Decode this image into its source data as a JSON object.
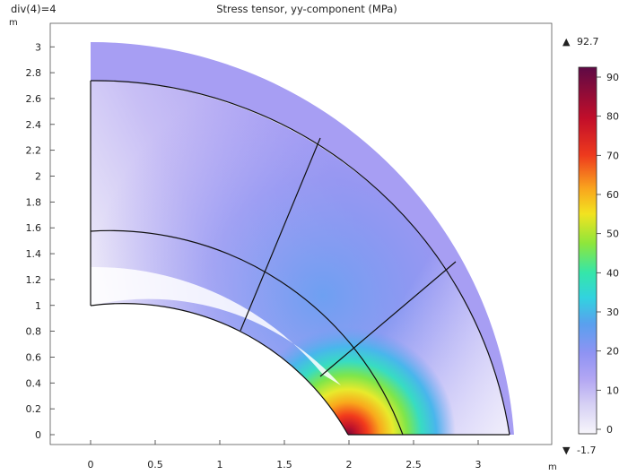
{
  "header": {
    "param_label": "div(4)=4",
    "title": "Stress tensor, yy-component (MPa)"
  },
  "axes": {
    "y_unit": "m",
    "x_unit": "m",
    "x_ticks": [
      "0",
      "0.5",
      "1",
      "1.5",
      "2",
      "2.5",
      "3"
    ],
    "y_ticks": [
      "0",
      "0.2",
      "0.4",
      "0.6",
      "0.8",
      "1",
      "1.2",
      "1.4",
      "1.6",
      "1.8",
      "2",
      "2.2",
      "2.4",
      "2.6",
      "2.8",
      "3"
    ]
  },
  "colorbar": {
    "max_label": "92.7",
    "min_label": "-1.7",
    "ticks": [
      "0",
      "10",
      "20",
      "30",
      "40",
      "50",
      "60",
      "70",
      "80",
      "90"
    ],
    "max_marker": "▲",
    "min_marker": "▼"
  },
  "chart_data": {
    "type": "heatmap",
    "title": "Stress tensor, yy-component (MPa)",
    "xlabel": "",
    "ylabel": "",
    "x_unit": "m",
    "y_unit": "m",
    "xlim": [
      -0.45,
      3.6
    ],
    "ylim": [
      -0.1,
      3.2
    ],
    "value_range": [
      -1.7,
      92.7
    ],
    "geometry": {
      "hole_center": [
        0,
        0
      ],
      "hole_radius": 1.0,
      "quarter_ring_radii": [
        1.0,
        1.58,
        2.42,
        2.75,
        3.25
      ],
      "data_outer_radius": 3.25
    }
  }
}
